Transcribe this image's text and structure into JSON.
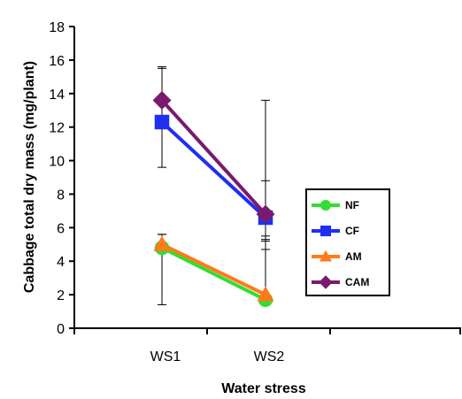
{
  "chart_data": {
    "type": "line",
    "categories": [
      "WS1",
      "WS2"
    ],
    "xlabel": "Water stress",
    "ylabel": "Cabbage total dry mass (mg/plant)",
    "ylim": [
      0,
      18
    ],
    "ytick_step": 2,
    "grid": false,
    "legend_position": "right",
    "series": [
      {
        "name": "NF",
        "color": "#33dd33",
        "marker": "circle",
        "values": [
          4.8,
          1.7
        ],
        "error_up": [
          0.8,
          3.6
        ],
        "error_down": [
          3.4,
          0.2
        ]
      },
      {
        "name": "CF",
        "color": "#1f2ff0",
        "marker": "square",
        "values": [
          12.3,
          6.6
        ],
        "error_up": [
          3.2,
          2.2
        ],
        "error_down": [
          2.7,
          1.9
        ]
      },
      {
        "name": "AM",
        "color": "#ff7a1a",
        "marker": "triangle",
        "values": [
          5.0,
          2.0
        ],
        "error_up": [
          0.6,
          3.5
        ],
        "error_down": [
          0.5,
          0.3
        ]
      },
      {
        "name": "CAM",
        "color": "#7a1a6e",
        "marker": "diamond",
        "values": [
          13.6,
          6.8
        ],
        "error_up": [
          2.0,
          6.8
        ],
        "error_down": [
          1.6,
          1.6
        ]
      }
    ]
  }
}
